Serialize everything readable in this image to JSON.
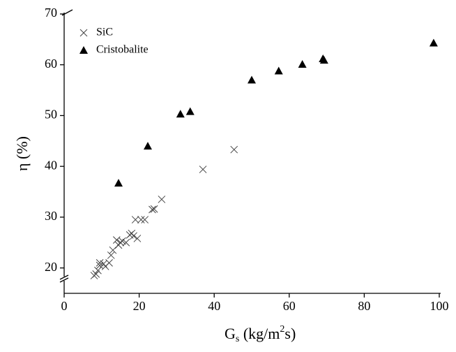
{
  "chart_data": {
    "type": "scatter",
    "xlabel": [
      "G",
      "s",
      " (kg/m",
      "2",
      "s)"
    ],
    "ylabel": "η (%)",
    "xlim": [
      0,
      100
    ],
    "xticks": [
      0,
      20,
      40,
      60,
      80,
      100
    ],
    "ylim": [
      15,
      70
    ],
    "yticks": [
      20,
      30,
      40,
      50,
      60,
      70
    ],
    "axis_break": true,
    "legend": "upper left",
    "series": [
      {
        "name": "SiC",
        "color": "#444444",
        "marker": "x",
        "x": [
          8,
          8.5,
          9,
          9.5,
          9.5,
          10.5,
          11,
          12,
          12.5,
          13,
          14,
          14.5,
          15,
          15.5,
          16.5,
          17.5,
          18,
          18.5,
          19,
          19.5,
          20.5,
          21.5,
          23.5,
          24,
          26,
          37,
          45.3
        ],
        "values": [
          18.5,
          18.8,
          19.5,
          20.5,
          21,
          20.8,
          20.3,
          21,
          22.5,
          23.5,
          25.5,
          24.5,
          25,
          25.3,
          25,
          26.5,
          26.8,
          26.3,
          29.5,
          25.8,
          29.5,
          29.5,
          31.5,
          31.6,
          33.5,
          39.4,
          43.3
        ]
      },
      {
        "name": "Cristobalite",
        "color": "#000000",
        "marker": "triangle",
        "x": [
          14.5,
          22.3,
          31,
          33.6,
          50,
          57.2,
          63.5,
          69,
          69.3,
          98.5
        ],
        "values": [
          36.7,
          44,
          50.3,
          50.8,
          57,
          58.8,
          60.1,
          61.2,
          60.9,
          64.3
        ]
      }
    ]
  }
}
